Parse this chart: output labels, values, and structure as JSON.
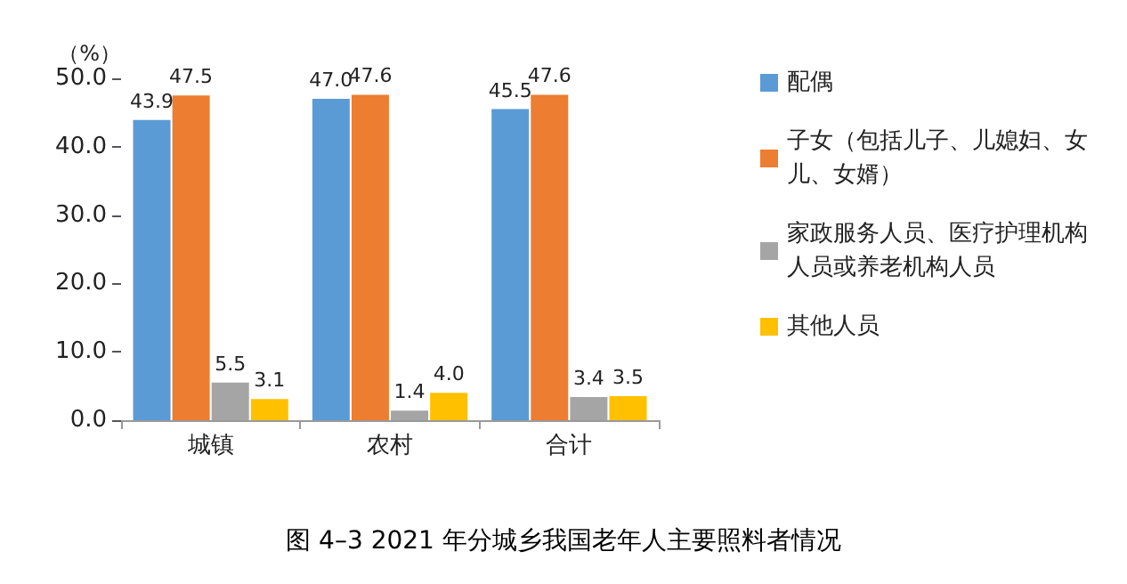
{
  "chart_data": {
    "type": "bar",
    "title": "图 4–3 2021 年分城乡我国老年人主要照料者情况",
    "ylabel": "（%）",
    "categories": [
      "城镇",
      "农村",
      "合计"
    ],
    "series": [
      {
        "name": "配偶",
        "color": "#5b9bd5",
        "values": [
          43.9,
          47.0,
          45.5
        ],
        "value_labels": [
          "43.9",
          "47.0",
          "45.5"
        ]
      },
      {
        "name": "子女（包括儿子、儿媳妇、女儿、女婿）",
        "color": "#ed7d31",
        "values": [
          47.5,
          47.6,
          47.6
        ],
        "value_labels": [
          "47.5",
          "47.6",
          "47.6"
        ]
      },
      {
        "name": "家政服务人员、医疗护理机构人员或养老机构人员",
        "color": "#a5a5a5",
        "values": [
          5.5,
          1.4,
          3.4
        ],
        "value_labels": [
          "5.5",
          "1.4",
          "3.4"
        ]
      },
      {
        "name": "其他人员",
        "color": "#ffc000",
        "values": [
          3.1,
          4.0,
          3.5
        ],
        "value_labels": [
          "3.1",
          "4.0",
          "3.5"
        ]
      }
    ],
    "ylim": [
      0,
      50
    ],
    "yticks": [
      {
        "value": 0,
        "label": "0.0"
      },
      {
        "value": 10,
        "label": "10.0"
      },
      {
        "value": 20,
        "label": "20.0"
      },
      {
        "value": 30,
        "label": "30.0"
      },
      {
        "value": 40,
        "label": "40.0"
      },
      {
        "value": 50,
        "label": "50.0"
      }
    ],
    "grid": false,
    "legend": "right"
  }
}
